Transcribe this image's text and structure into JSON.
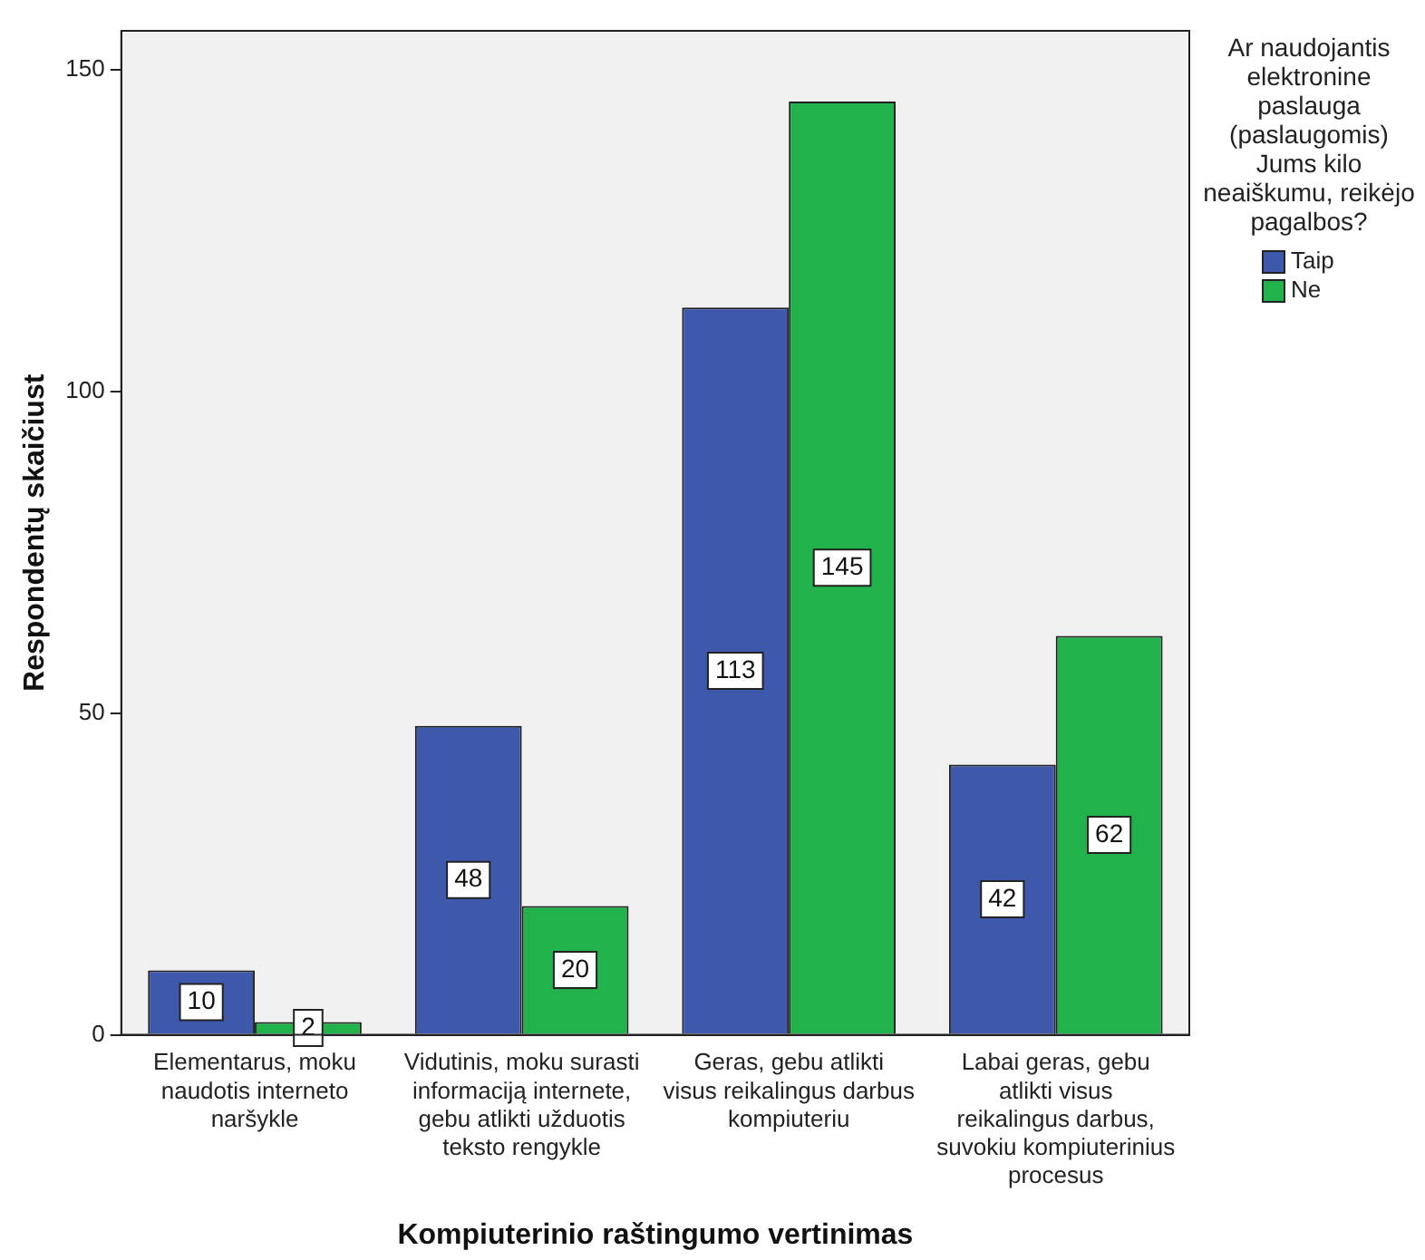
{
  "chart_data": {
    "type": "bar",
    "xlabel": "Kompiuterinio raštingumo vertinimas",
    "ylabel": "Respondentų skaičiust",
    "legend_title": "Ar naudojantis elektronine paslauga (paslaugomis) Jums kilo neaiškumu, reikėjo pagalbos?",
    "categories": [
      "Elementarus, moku naudotis interneto naršykle",
      "Vidutinis, moku surasti informaciją internete, gebu atlikti užduotis teksto rengykle",
      "Geras, gebu atlikti visus reikalingus darbus kompiuteriu",
      "Labai geras, gebu atlikti visus reikalingus darbus, suvokiu kompiuterinius procesus"
    ],
    "series": [
      {
        "name": "Taip",
        "color": "#3e58ac",
        "values": [
          10,
          48,
          113,
          42
        ]
      },
      {
        "name": "Ne",
        "color": "#21b24b",
        "values": [
          2,
          20,
          145,
          62
        ]
      }
    ],
    "ylim": [
      0,
      156
    ],
    "yticks": [
      0,
      50,
      100,
      150
    ],
    "grid": false,
    "legend": "top right",
    "data_labels": true
  }
}
